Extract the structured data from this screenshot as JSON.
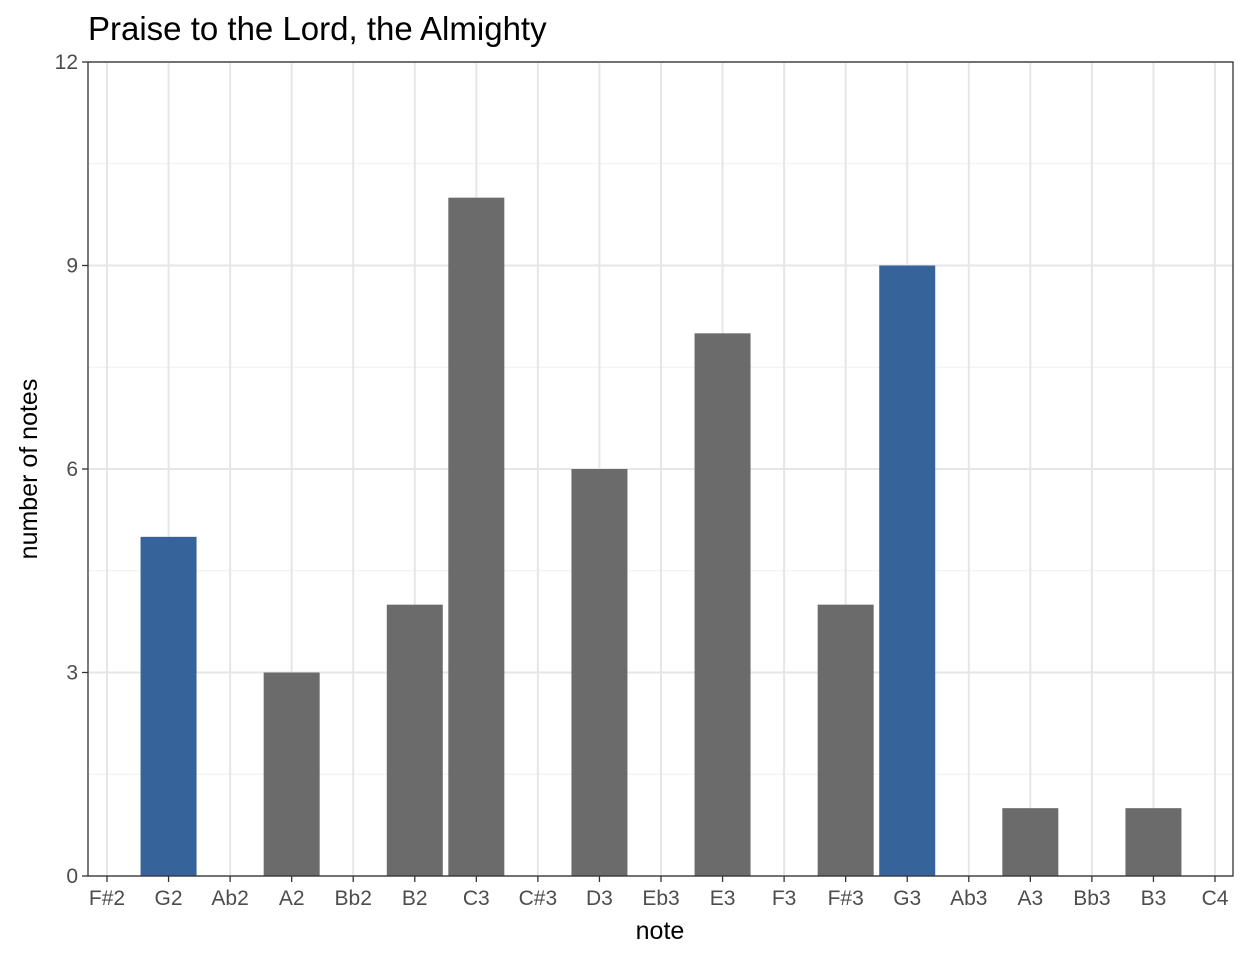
{
  "chart_data": {
    "type": "bar",
    "title": "Praise to the Lord, the Almighty",
    "xlabel": "note",
    "ylabel": "number of notes",
    "categories": [
      "F#2",
      "G2",
      "Ab2",
      "A2",
      "Bb2",
      "B2",
      "C3",
      "C#3",
      "D3",
      "Eb3",
      "E3",
      "F3",
      "F#3",
      "G3",
      "Ab3",
      "A3",
      "Bb3",
      "B3",
      "C4"
    ],
    "values": [
      0,
      5,
      0,
      3,
      0,
      4,
      10,
      0,
      6,
      0,
      8,
      0,
      4,
      9,
      0,
      1,
      0,
      1,
      0
    ],
    "highlighted": [
      "G2",
      "G3"
    ],
    "colors": {
      "default": "#6b6b6b",
      "highlight": "#366399"
    },
    "ylim": [
      0,
      12
    ],
    "yticks": [
      0,
      3,
      6,
      9,
      12
    ],
    "grid": true,
    "legend": "none"
  }
}
